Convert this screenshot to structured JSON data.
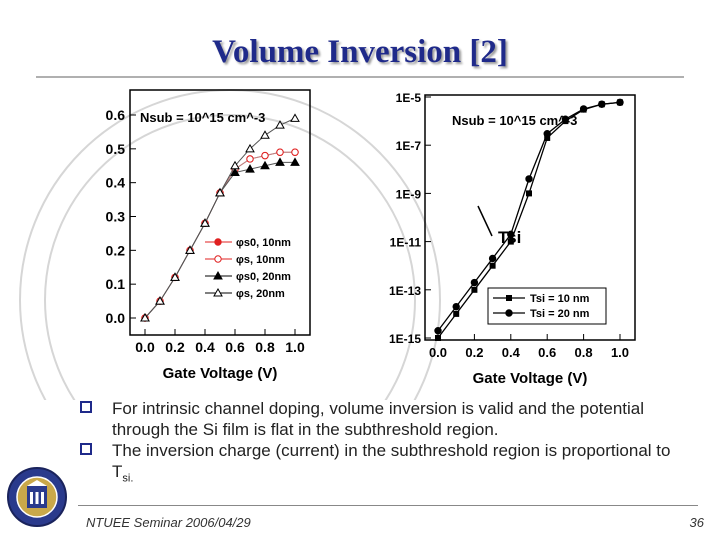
{
  "slide": {
    "title": "Volume Inversion [2]",
    "bullets": [
      {
        "text": "For intrinsic channel doping, volume inversion is valid and the potential through the Si film is flat in the subthreshold region."
      },
      {
        "text": "The inversion charge (current) in the subthreshold region is proportional to T",
        "sub": "si."
      }
    ],
    "footer_left": "NTUEE Seminar 2006/04/29",
    "page_number": "36",
    "accent_color": "#1f2a8a"
  },
  "chart_data": [
    {
      "type": "line",
      "annotation": "Nsub = 10^15 cm^-3",
      "xlabel": "Gate Voltage (V)",
      "ylabel": "",
      "xlim": [
        0.0,
        1.0
      ],
      "ylim": [
        0.0,
        0.6
      ],
      "x_ticks": [
        "0.0",
        "0.2",
        "0.4",
        "0.6",
        "0.8",
        "1.0"
      ],
      "y_ticks": [
        "0.0",
        "0.1",
        "0.2",
        "0.3",
        "0.4",
        "0.5",
        "0.6"
      ],
      "series": [
        {
          "name": "φs0, 10nm",
          "color": "#e02020",
          "marker": "filled-circle",
          "x": [
            0.0,
            0.1,
            0.2,
            0.3,
            0.4,
            0.5,
            0.6,
            0.7,
            0.8,
            0.9,
            1.0
          ],
          "y": [
            0.0,
            0.05,
            0.12,
            0.2,
            0.28,
            0.37,
            0.44,
            0.47,
            0.48,
            0.49,
            0.49
          ]
        },
        {
          "name": "φs, 10nm",
          "color": "#e02020",
          "marker": "open-circle",
          "x": [
            0.0,
            0.1,
            0.2,
            0.3,
            0.4,
            0.5,
            0.6,
            0.7,
            0.8,
            0.9,
            1.0
          ],
          "y": [
            0.0,
            0.05,
            0.12,
            0.2,
            0.28,
            0.37,
            0.44,
            0.47,
            0.48,
            0.49,
            0.49
          ]
        },
        {
          "name": "φs0, 20nm",
          "color": "#000000",
          "marker": "filled-triangle",
          "x": [
            0.0,
            0.1,
            0.2,
            0.3,
            0.4,
            0.5,
            0.6,
            0.7,
            0.8,
            0.9,
            1.0
          ],
          "y": [
            0.0,
            0.05,
            0.12,
            0.2,
            0.28,
            0.37,
            0.43,
            0.44,
            0.45,
            0.46,
            0.46
          ]
        },
        {
          "name": "φs, 20nm",
          "color": "#000000",
          "marker": "open-triangle",
          "x": [
            0.0,
            0.1,
            0.2,
            0.3,
            0.4,
            0.5,
            0.6,
            0.7,
            0.8,
            0.9,
            1.0
          ],
          "y": [
            0.0,
            0.05,
            0.12,
            0.2,
            0.28,
            0.37,
            0.45,
            0.5,
            0.54,
            0.57,
            0.59
          ]
        }
      ]
    },
    {
      "type": "line",
      "annotation": "Nsub = 10^15 cm^-3",
      "xlabel": "Gate Voltage (V)",
      "ylabel": "",
      "xlim": [
        0.0,
        1.0
      ],
      "ylim": [
        "1E-15",
        "1E-5"
      ],
      "log_y": true,
      "x_ticks": [
        "0.0",
        "0.2",
        "0.4",
        "0.6",
        "0.8",
        "1.0"
      ],
      "y_ticks": [
        "1E-15",
        "1E-13",
        "1E-11",
        "1E-9",
        "1E-7",
        "1E-5"
      ],
      "inner_label": "Tsi",
      "series": [
        {
          "name": "Tsi = 10 nm",
          "color": "#000000",
          "marker": "filled-square",
          "x": [
            0.0,
            0.1,
            0.2,
            0.3,
            0.4,
            0.5,
            0.6,
            0.7,
            0.8,
            0.9,
            1.0
          ],
          "y": [
            1e-15,
            1e-14,
            1e-13,
            1e-12,
            1e-11,
            1e-09,
            2e-07,
            1e-06,
            3e-06,
            5e-06,
            6e-06
          ]
        },
        {
          "name": "Tsi = 20 nm",
          "color": "#000000",
          "marker": "filled-circle",
          "x": [
            0.0,
            0.1,
            0.2,
            0.3,
            0.4,
            0.5,
            0.6,
            0.7,
            0.8,
            0.9,
            1.0
          ],
          "y": [
            2e-15,
            2e-14,
            2e-13,
            2e-12,
            2e-11,
            4e-09,
            3e-07,
            1.2e-06,
            3.2e-06,
            5e-06,
            6e-06
          ]
        }
      ]
    }
  ]
}
